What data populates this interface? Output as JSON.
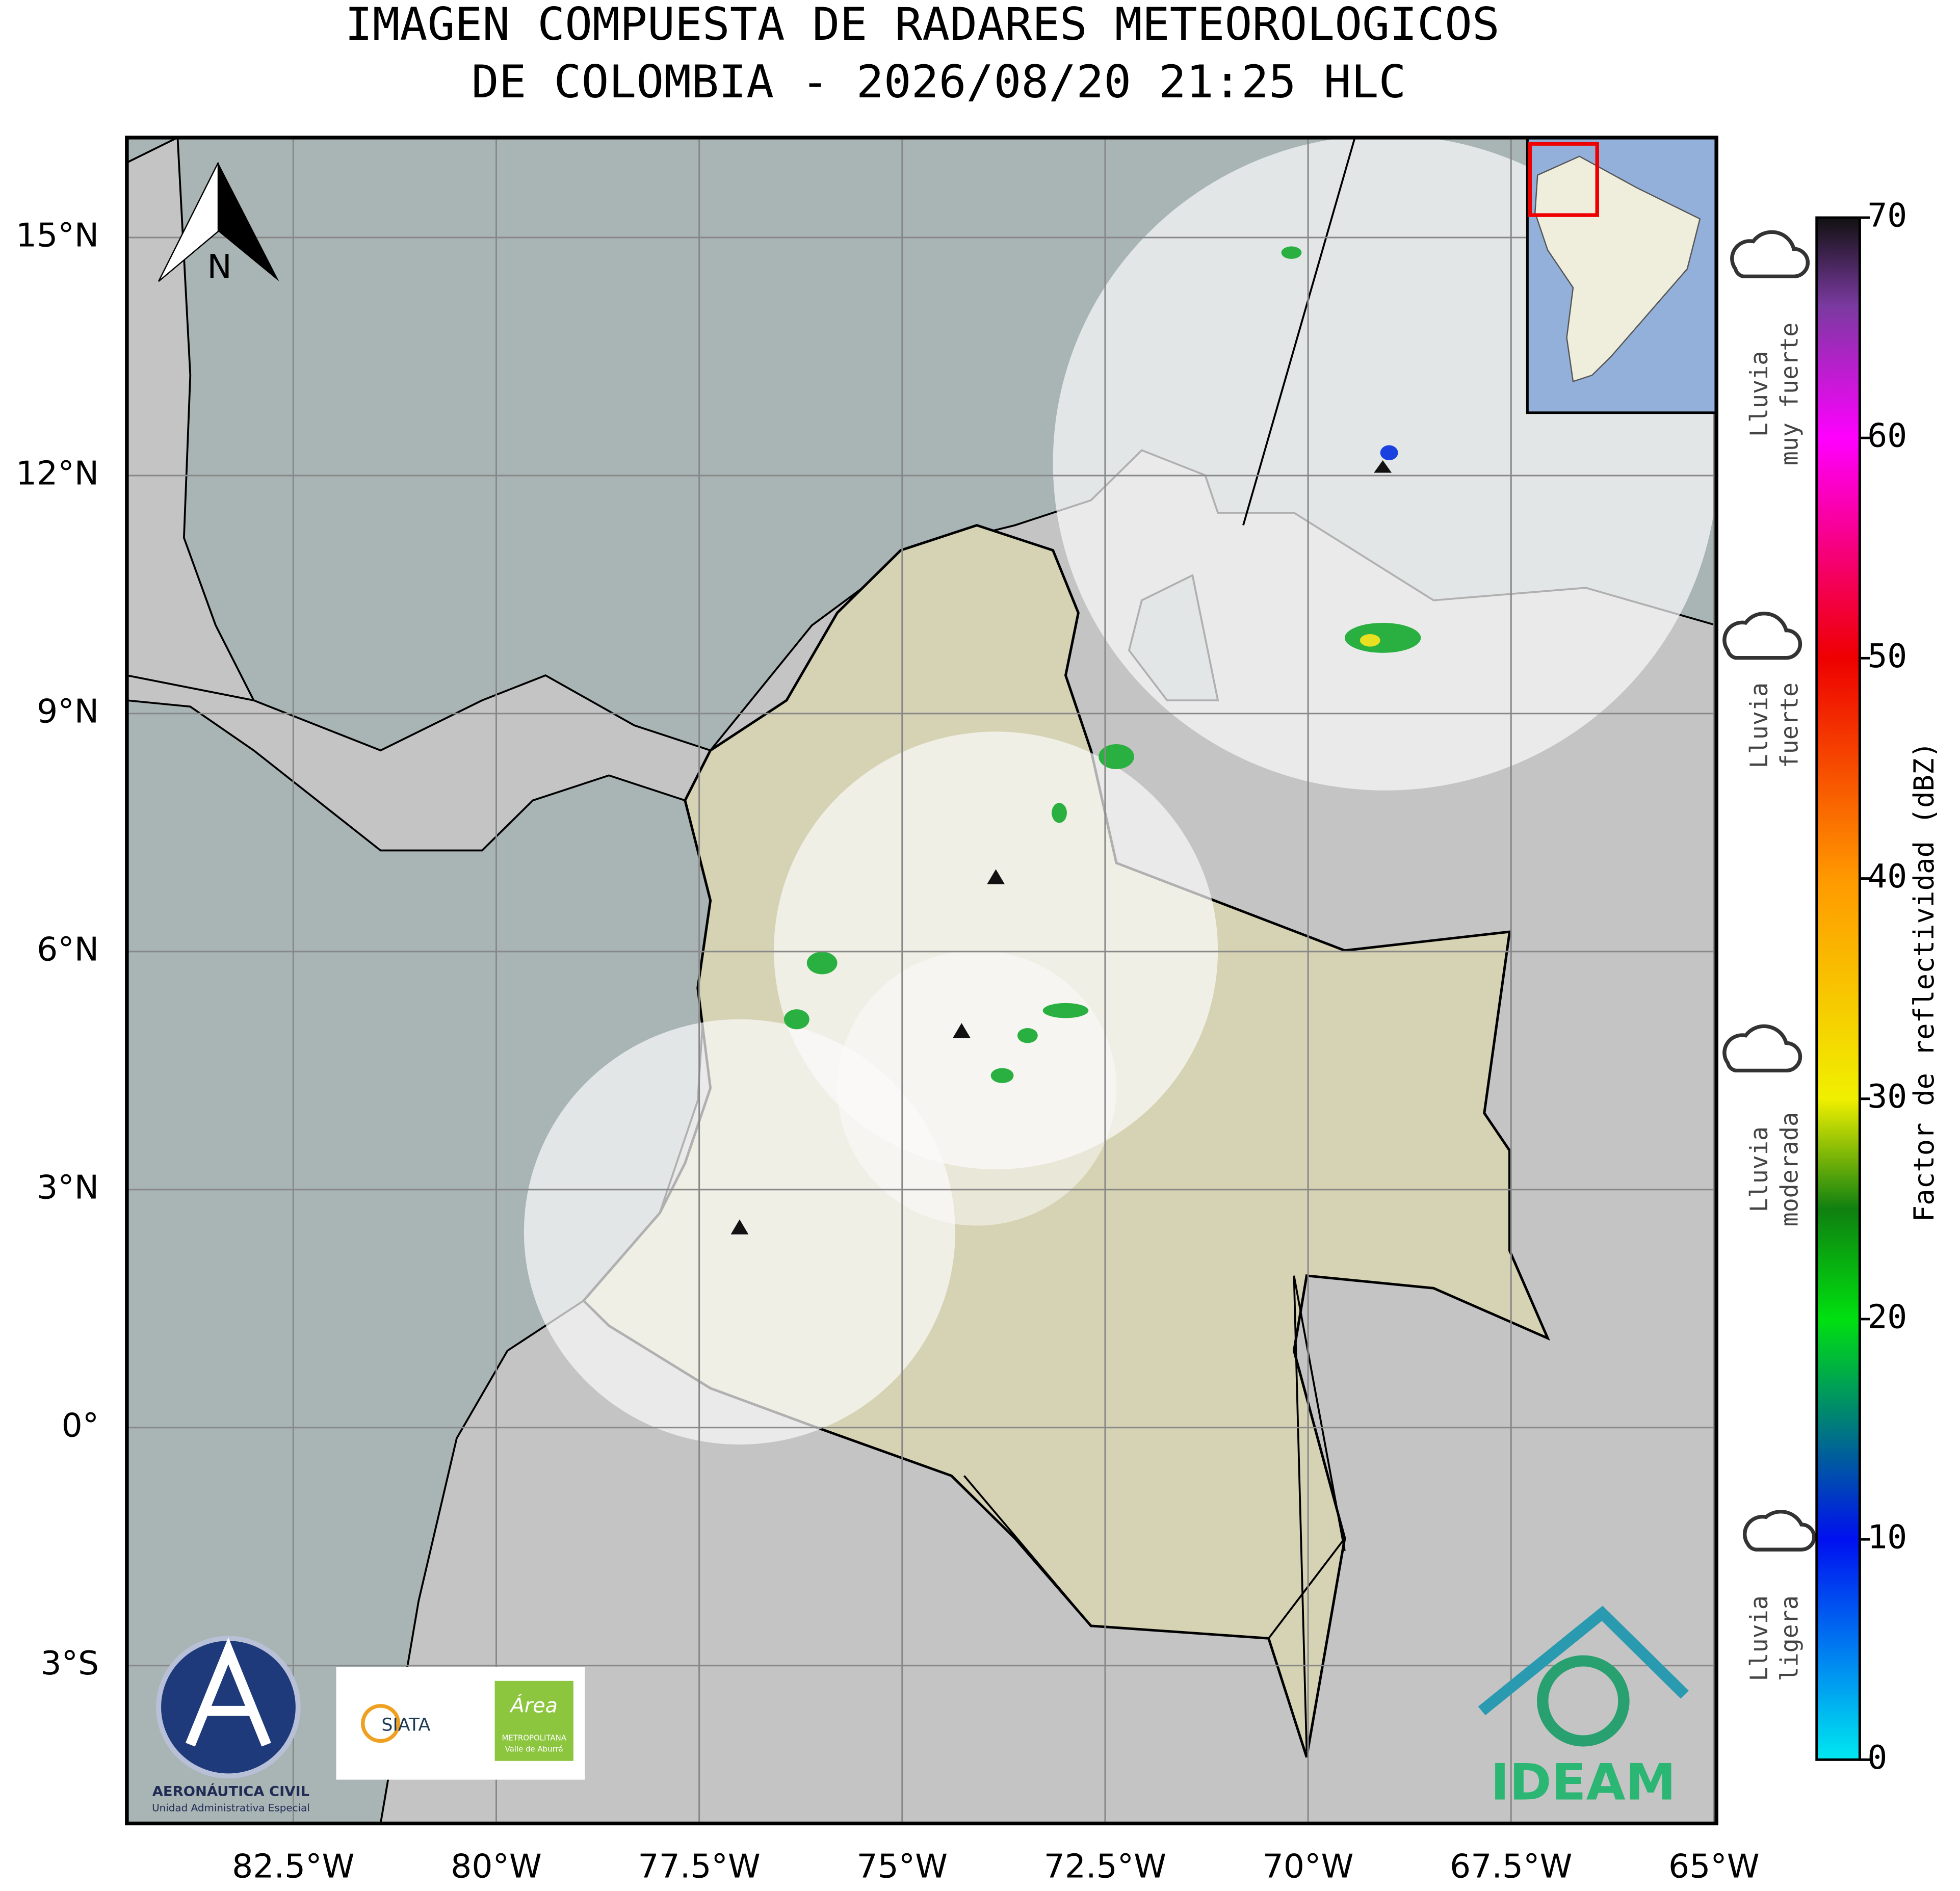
{
  "title": [
    "IMAGEN COMPUESTA DE RADARES METEOROLOGICOS",
    "DE COLOMBIA - 2026/08/20 21:25 HLC"
  ],
  "map": {
    "xlim": [
      -84.55,
      -64.97
    ],
    "ylim": [
      -4.99,
      16.26
    ],
    "lon_ticks": [
      {
        "value": -82.5,
        "label": "82.5°W"
      },
      {
        "value": -80,
        "label": "80°W"
      },
      {
        "value": -77.5,
        "label": "77.5°W"
      },
      {
        "value": -75,
        "label": "75°W"
      },
      {
        "value": -72.5,
        "label": "72.5°W"
      },
      {
        "value": -70,
        "label": "70°W"
      },
      {
        "value": -67.5,
        "label": "67.5°W"
      },
      {
        "value": -65,
        "label": "65°W"
      }
    ],
    "lat_ticks": [
      {
        "value": 15,
        "label": "15°N"
      },
      {
        "value": 12,
        "label": "12°N"
      },
      {
        "value": 9,
        "label": "9°N"
      },
      {
        "value": 6,
        "label": "6°N"
      },
      {
        "value": 3,
        "label": "3°N"
      },
      {
        "value": 0,
        "label": "0°"
      },
      {
        "value": -3,
        "label": "3°S"
      }
    ],
    "north": "N"
  },
  "colorbar": {
    "label": "Factor de reflectividad (dBZ)",
    "lim": [
      0,
      70
    ],
    "ticks": [
      0,
      10,
      20,
      30,
      40,
      50,
      60,
      70
    ],
    "colormap": [
      {
        "value": 0,
        "color": "#00e8f0"
      },
      {
        "value": 10,
        "color": "#0010f0"
      },
      {
        "value": 20,
        "color": "#00e010"
      },
      {
        "value": 25,
        "color": "#108010"
      },
      {
        "value": 30,
        "color": "#f0f000"
      },
      {
        "value": 40,
        "color": "#ff9900"
      },
      {
        "value": 50,
        "color": "#ee0000"
      },
      {
        "value": 60,
        "color": "#ff00ff"
      },
      {
        "value": 66,
        "color": "#7a3aa0"
      },
      {
        "value": 70,
        "color": "#111111"
      }
    ]
  },
  "rain_levels": [
    {
      "lines": [
        "Lluvia",
        "muy fuerte"
      ]
    },
    {
      "lines": [
        "Lluvia",
        "fuerte"
      ]
    },
    {
      "lines": [
        "Lluvia",
        "moderada"
      ]
    },
    {
      "lines": [
        "Lluvia",
        "ligera"
      ]
    }
  ],
  "logos": {
    "aerocivil": [
      "AERONÁUTICA CIVIL",
      "Unidad Administrativa Especial"
    ],
    "siata": "SIATA",
    "area": [
      "Área",
      "METROPOLITANA",
      "Valle de Aburrá"
    ],
    "ideam": "IDEAM"
  }
}
